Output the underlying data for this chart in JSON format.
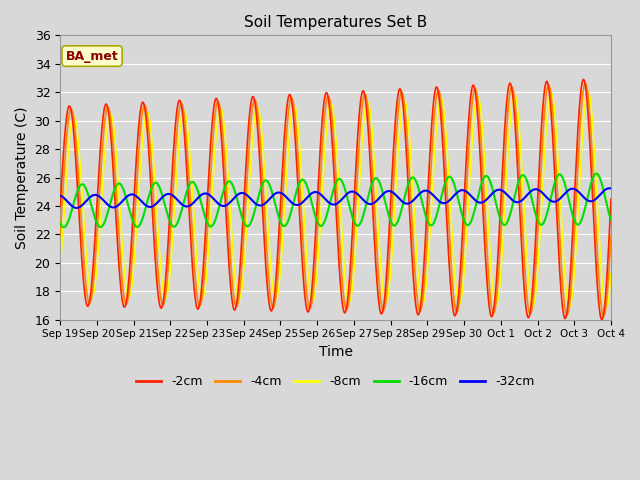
{
  "title": "Soil Temperatures Set B",
  "xlabel": "Time",
  "ylabel": "Soil Temperature (C)",
  "ylim": [
    16,
    36
  ],
  "annotation": "BA_met",
  "fig_facecolor": "#d8d8d8",
  "ax_facecolor": "#d8d8d8",
  "series_colors": {
    "-2cm": "#ff2200",
    "-4cm": "#ff8800",
    "-8cm": "#ffff00",
    "-16cm": "#00dd00",
    "-32cm": "#0000ff"
  },
  "date_labels": [
    "Sep 19",
    "Sep 20",
    "Sep 21",
    "Sep 22",
    "Sep 23",
    "Sep 24",
    "Sep 25",
    "Sep 26",
    "Sep 27",
    "Sep 28",
    "Sep 29",
    "Sep 30",
    "Oct 1",
    "Oct 2",
    "Oct 3",
    "Oct 4"
  ],
  "yticks": [
    16,
    18,
    20,
    22,
    24,
    26,
    28,
    30,
    32,
    34,
    36
  ]
}
